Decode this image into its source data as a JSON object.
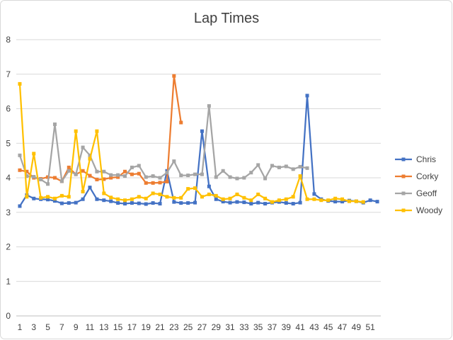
{
  "chart_data": {
    "type": "line",
    "title": "Lap Times",
    "xlabel": "",
    "ylabel": "",
    "ylim": [
      0,
      8
    ],
    "y_ticks": [
      0,
      1,
      2,
      3,
      4,
      5,
      6,
      7,
      8
    ],
    "x_tick_labels": [
      "1",
      "3",
      "5",
      "7",
      "9",
      "11",
      "13",
      "15",
      "17",
      "19",
      "21",
      "23",
      "25",
      "27",
      "29",
      "31",
      "33",
      "35",
      "37",
      "39",
      "41",
      "43",
      "45",
      "47",
      "49",
      "51"
    ],
    "x_count": 52,
    "grid": "horizontal",
    "legend": "right",
    "series": [
      {
        "name": "Chris",
        "color": "#4472C4",
        "marker": "square",
        "values": [
          3.18,
          3.5,
          3.4,
          3.38,
          3.37,
          3.33,
          3.26,
          3.27,
          3.28,
          3.38,
          3.72,
          3.38,
          3.35,
          3.32,
          3.27,
          3.25,
          3.27,
          3.26,
          3.24,
          3.27,
          3.25,
          4.2,
          3.3,
          3.27,
          3.27,
          3.28,
          5.35,
          3.75,
          3.38,
          3.31,
          3.28,
          3.3,
          3.29,
          3.25,
          3.28,
          3.25,
          3.28,
          3.3,
          3.27,
          3.25,
          3.28,
          6.38,
          3.53,
          3.38,
          3.33,
          3.31,
          3.31,
          3.34,
          3.32,
          3.28,
          3.35,
          3.31
        ]
      },
      {
        "name": "Corky",
        "color": "#ED7D31",
        "marker": "square",
        "values": [
          4.22,
          4.18,
          4.0,
          3.97,
          4.02,
          4.0,
          3.9,
          4.3,
          4.1,
          4.2,
          4.06,
          3.95,
          3.96,
          4.0,
          4.02,
          4.18,
          4.1,
          4.12,
          3.85,
          3.85,
          3.86,
          3.89,
          6.95,
          5.6,
          null,
          null,
          null,
          null,
          null,
          null,
          null,
          null,
          null,
          null,
          null,
          null,
          null,
          null,
          null,
          null,
          null,
          null,
          null,
          null,
          null,
          null,
          null,
          null,
          null,
          null,
          null,
          null
        ]
      },
      {
        "name": "Geoff",
        "color": "#A5A5A5",
        "marker": "square",
        "values": [
          4.65,
          4.05,
          4.03,
          3.95,
          3.82,
          5.55,
          3.9,
          4.2,
          4.1,
          4.88,
          4.65,
          4.18,
          4.18,
          4.08,
          4.08,
          4.05,
          4.3,
          4.35,
          4.02,
          4.05,
          4.0,
          4.15,
          4.48,
          4.07,
          4.07,
          4.1,
          4.1,
          6.08,
          4.02,
          4.2,
          4.02,
          3.98,
          4.0,
          4.15,
          4.37,
          3.98,
          4.35,
          4.3,
          4.33,
          4.25,
          4.32,
          4.28,
          null,
          null,
          null,
          null,
          null,
          null,
          null,
          null,
          null,
          null
        ]
      },
      {
        "name": "Woody",
        "color": "#FFC000",
        "marker": "square",
        "values": [
          6.72,
          3.45,
          4.7,
          3.42,
          3.45,
          3.4,
          3.48,
          3.45,
          5.35,
          3.6,
          4.55,
          5.35,
          3.55,
          3.43,
          3.38,
          3.35,
          3.38,
          3.45,
          3.4,
          3.55,
          3.52,
          3.45,
          3.42,
          3.42,
          3.68,
          3.7,
          3.45,
          3.52,
          3.48,
          3.38,
          3.4,
          3.52,
          3.42,
          3.35,
          3.52,
          3.4,
          3.3,
          3.35,
          3.38,
          3.45,
          4.05,
          3.38,
          3.38,
          3.35,
          3.35,
          3.4,
          3.38,
          3.32,
          3.32,
          3.3,
          null,
          null
        ]
      }
    ]
  }
}
